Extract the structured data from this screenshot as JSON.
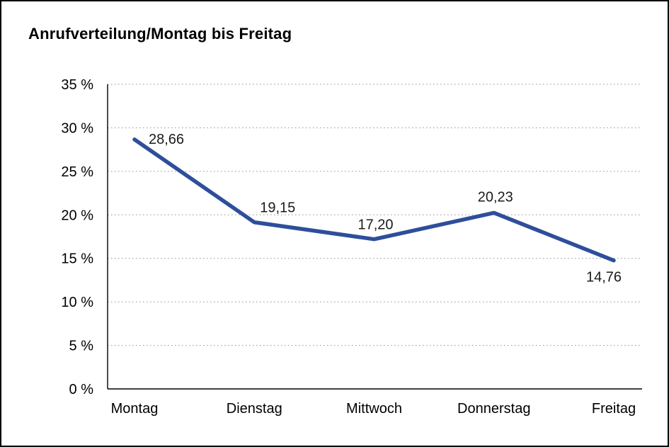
{
  "chart_data": {
    "type": "line",
    "title": "Anrufverteilung/Montag bis Freitag",
    "categories": [
      "Montag",
      "Dienstag",
      "Mittwoch",
      "Donnerstag",
      "Freitag"
    ],
    "values": [
      28.66,
      19.15,
      17.2,
      20.23,
      14.76
    ],
    "value_labels": [
      "28,66",
      "19,15",
      "17,20",
      "20,23",
      "14,76"
    ],
    "ylim": [
      0,
      35
    ],
    "ytick_step": 5,
    "ytick_labels": [
      "0 %",
      "5 %",
      "10 %",
      "15 %",
      "20 %",
      "25 %",
      "30 %",
      "35 %"
    ],
    "xlabel": "",
    "ylabel": "",
    "grid": "horizontal-dotted",
    "legend": "none",
    "line_color": "#2e4e9c",
    "grid_color": "#8f8f8f",
    "axis_color": "#000000",
    "text_color": "#000000"
  }
}
